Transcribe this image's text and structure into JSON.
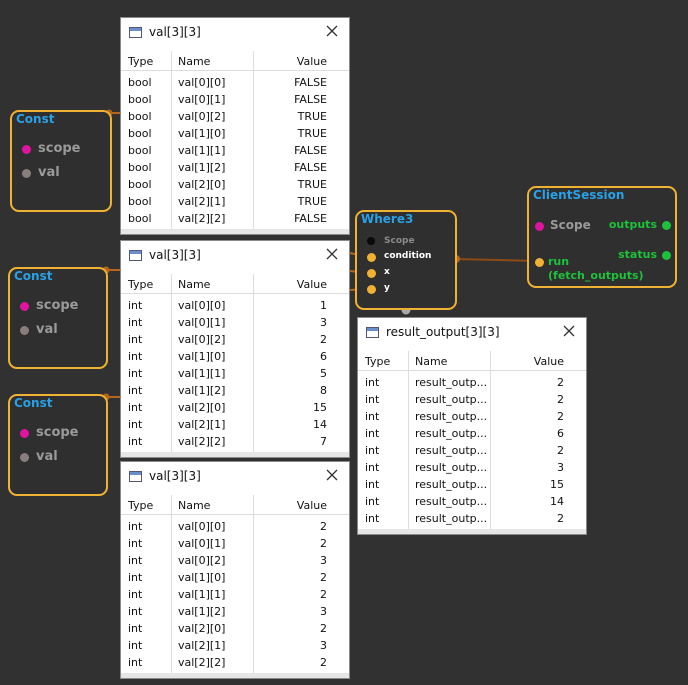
{
  "const_nodes": [
    {
      "title": "Const",
      "ports": [
        "scope",
        "val"
      ]
    },
    {
      "title": "Const",
      "ports": [
        "scope",
        "val"
      ]
    },
    {
      "title": "Const",
      "ports": [
        "scope",
        "val"
      ]
    }
  ],
  "where_node": {
    "title": "Where3",
    "scope": "Scope",
    "inputs": [
      "condition",
      "x",
      "y"
    ]
  },
  "client_session": {
    "title": "ClientSession",
    "scope": "Scope",
    "run": "run",
    "run_sub": "(fetch_outputs)",
    "outputs": [
      "outputs",
      "status"
    ]
  },
  "panels": [
    {
      "title": "val[3][3]",
      "columns": [
        "Type",
        "Name",
        "Value"
      ],
      "rows": [
        [
          "bool",
          "val[0][0]",
          "FALSE"
        ],
        [
          "bool",
          "val[0][1]",
          "FALSE"
        ],
        [
          "bool",
          "val[0][2]",
          "TRUE"
        ],
        [
          "bool",
          "val[1][0]",
          "TRUE"
        ],
        [
          "bool",
          "val[1][1]",
          "FALSE"
        ],
        [
          "bool",
          "val[1][2]",
          "FALSE"
        ],
        [
          "bool",
          "val[2][0]",
          "TRUE"
        ],
        [
          "bool",
          "val[2][1]",
          "TRUE"
        ],
        [
          "bool",
          "val[2][2]",
          "FALSE"
        ]
      ]
    },
    {
      "title": "val[3][3]",
      "columns": [
        "Type",
        "Name",
        "Value"
      ],
      "rows": [
        [
          "int",
          "val[0][0]",
          1
        ],
        [
          "int",
          "val[0][1]",
          3
        ],
        [
          "int",
          "val[0][2]",
          2
        ],
        [
          "int",
          "val[1][0]",
          6
        ],
        [
          "int",
          "val[1][1]",
          5
        ],
        [
          "int",
          "val[1][2]",
          8
        ],
        [
          "int",
          "val[2][0]",
          15
        ],
        [
          "int",
          "val[2][1]",
          14
        ],
        [
          "int",
          "val[2][2]",
          7
        ]
      ]
    },
    {
      "title": "val[3][3]",
      "columns": [
        "Type",
        "Name",
        "Value"
      ],
      "rows": [
        [
          "int",
          "val[0][0]",
          2
        ],
        [
          "int",
          "val[0][1]",
          2
        ],
        [
          "int",
          "val[0][2]",
          3
        ],
        [
          "int",
          "val[1][0]",
          2
        ],
        [
          "int",
          "val[1][1]",
          2
        ],
        [
          "int",
          "val[1][2]",
          3
        ],
        [
          "int",
          "val[2][0]",
          2
        ],
        [
          "int",
          "val[2][1]",
          3
        ],
        [
          "int",
          "val[2][2]",
          2
        ]
      ]
    },
    {
      "title": "result_output[3][3]",
      "columns": [
        "Type",
        "Name",
        "Value"
      ],
      "rows": [
        [
          "int",
          "result_outp...",
          2
        ],
        [
          "int",
          "result_outp...",
          2
        ],
        [
          "int",
          "result_outp...",
          2
        ],
        [
          "int",
          "result_outp...",
          6
        ],
        [
          "int",
          "result_outp...",
          2
        ],
        [
          "int",
          "result_outp...",
          3
        ],
        [
          "int",
          "result_outp...",
          15
        ],
        [
          "int",
          "result_outp...",
          14
        ],
        [
          "int",
          "result_outp...",
          2
        ]
      ]
    }
  ]
}
